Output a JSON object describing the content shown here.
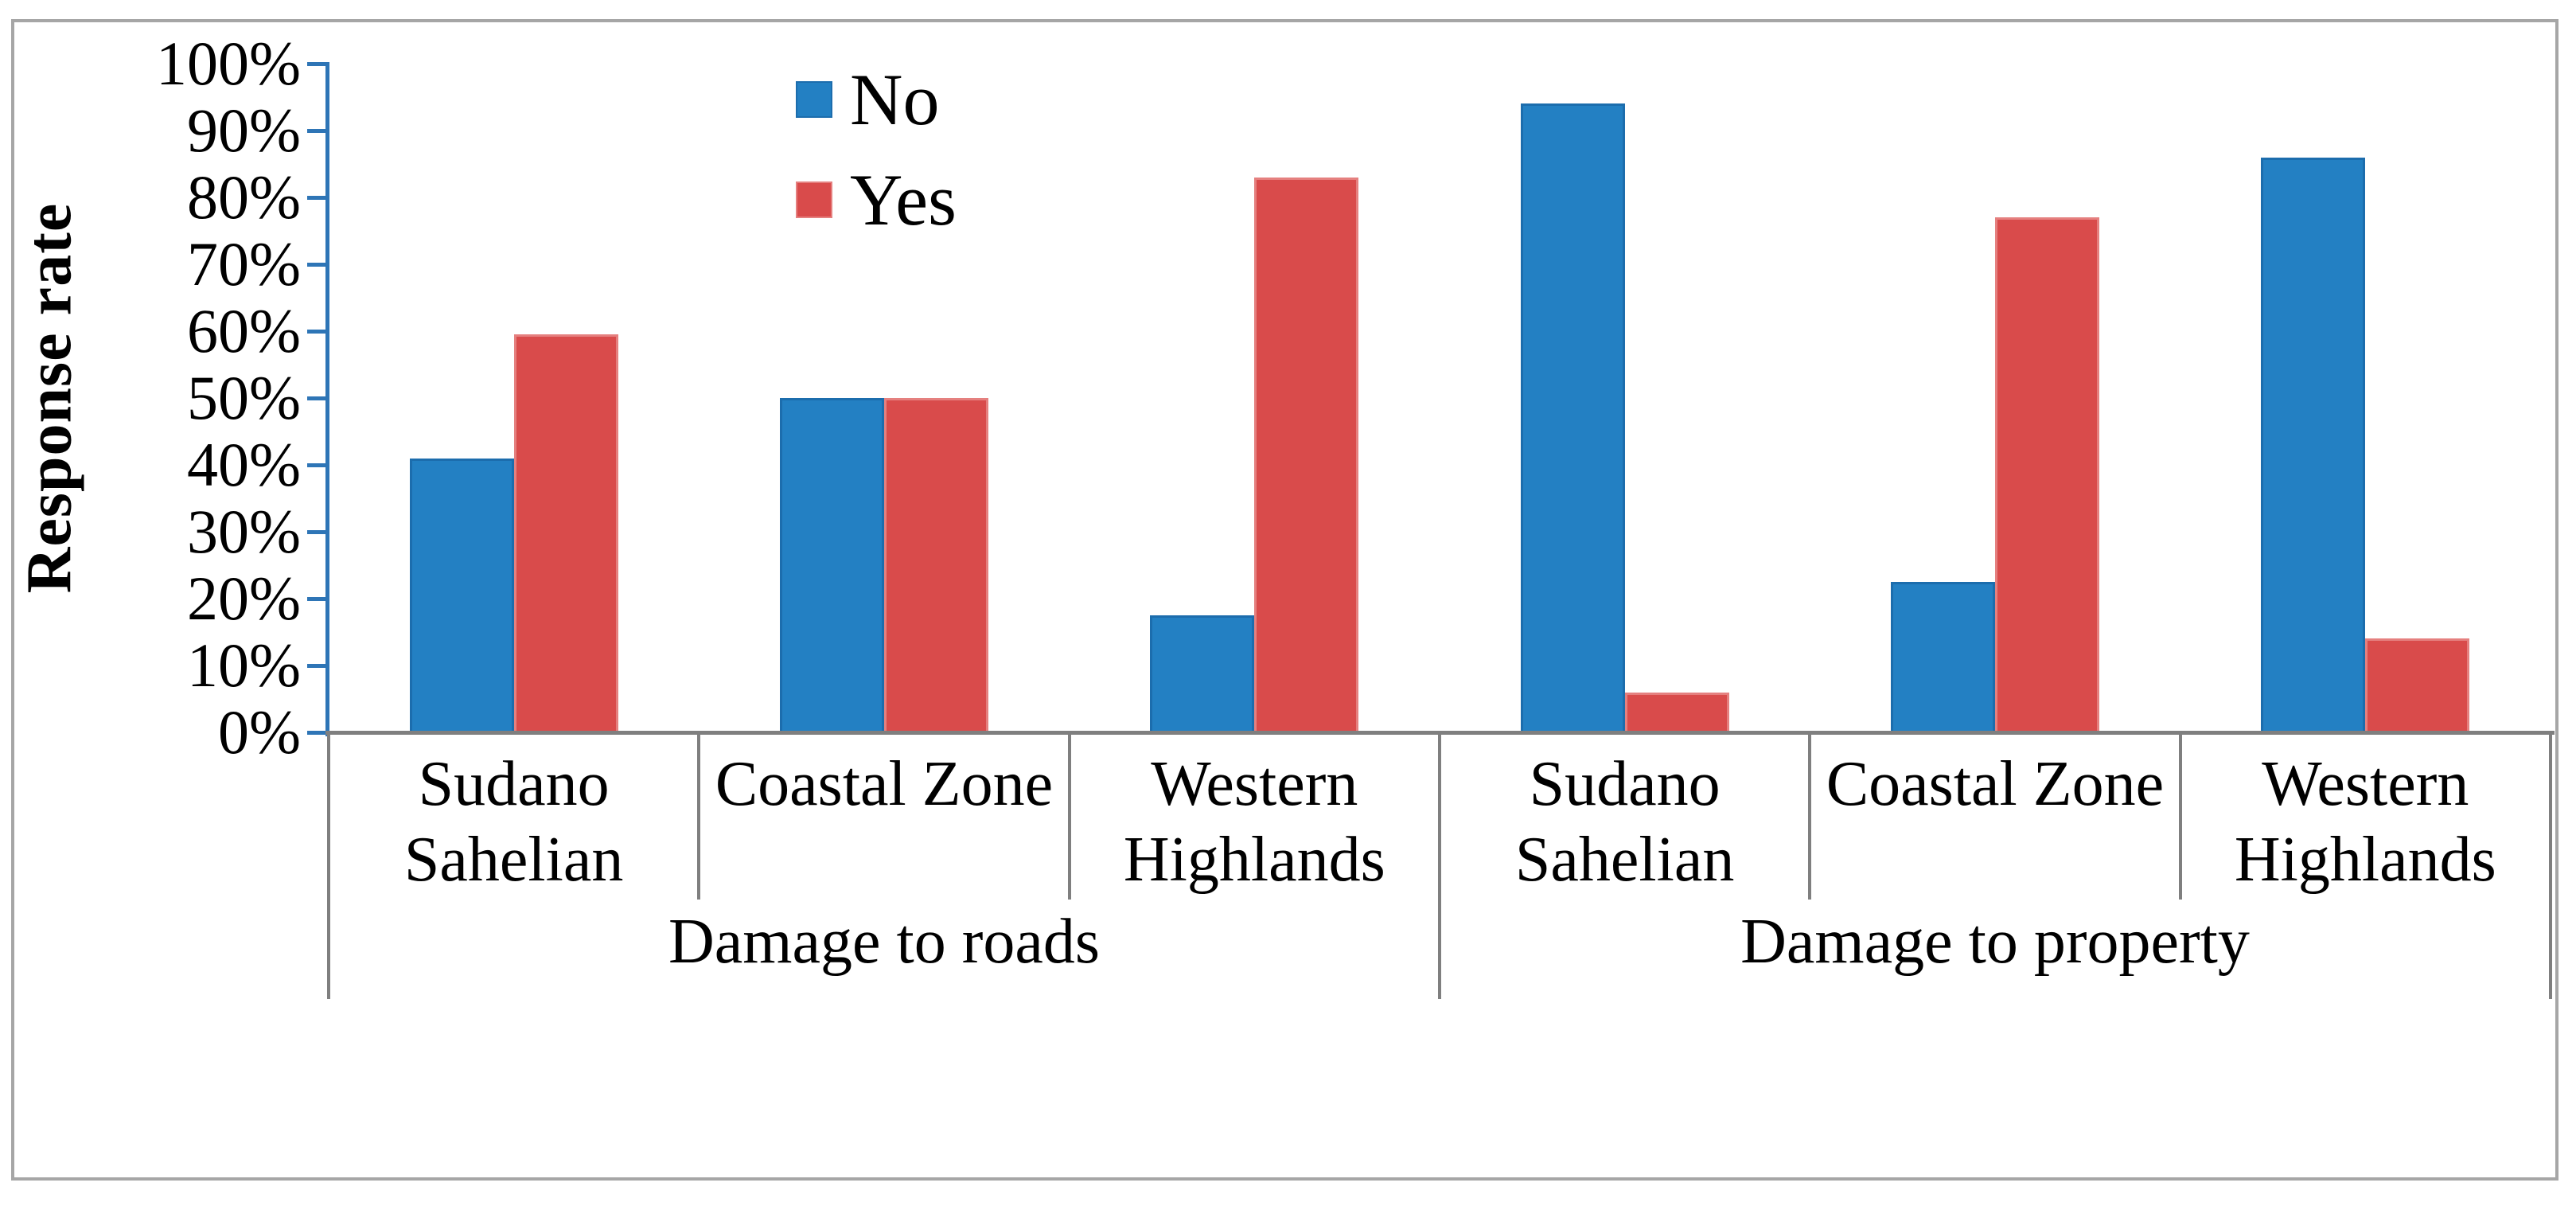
{
  "figure": {
    "background": "#ffffff",
    "frame_border_color": "#a6a6a6"
  },
  "chart_data": {
    "type": "bar",
    "title": "",
    "ylabel": "Response rate",
    "xlabel": "",
    "ylim": [
      0,
      100
    ],
    "ytick_step": 10,
    "ytick_labels": [
      "0%",
      "10%",
      "20%",
      "30%",
      "40%",
      "50%",
      "60%",
      "70%",
      "80%",
      "90%",
      "100%"
    ],
    "grid": false,
    "legend_position": "top-inside-left",
    "value_axis_color": "#2e75b6",
    "category_axis_color": "#7f7f7f",
    "text_color": "#000000",
    "categories": [
      "Sudano Sahelian",
      "Coastal Zone",
      "Western Highlands",
      "Sudano Sahelian",
      "Coastal Zone",
      "Western Highlands"
    ],
    "groups": [
      {
        "label": "Damage to roads",
        "span": [
          0,
          3
        ]
      },
      {
        "label": "Damage to property",
        "span": [
          3,
          6
        ]
      }
    ],
    "series": [
      {
        "name": "No",
        "color": "#2380c3",
        "border_color": "#1c6dad",
        "values": [
          41,
          50,
          17.5,
          94,
          22.5,
          86
        ]
      },
      {
        "name": "Yes",
        "color": "#d94b4b",
        "border_color": "#e5807f",
        "values": [
          59.5,
          50,
          83,
          6,
          77,
          14
        ]
      }
    ]
  }
}
